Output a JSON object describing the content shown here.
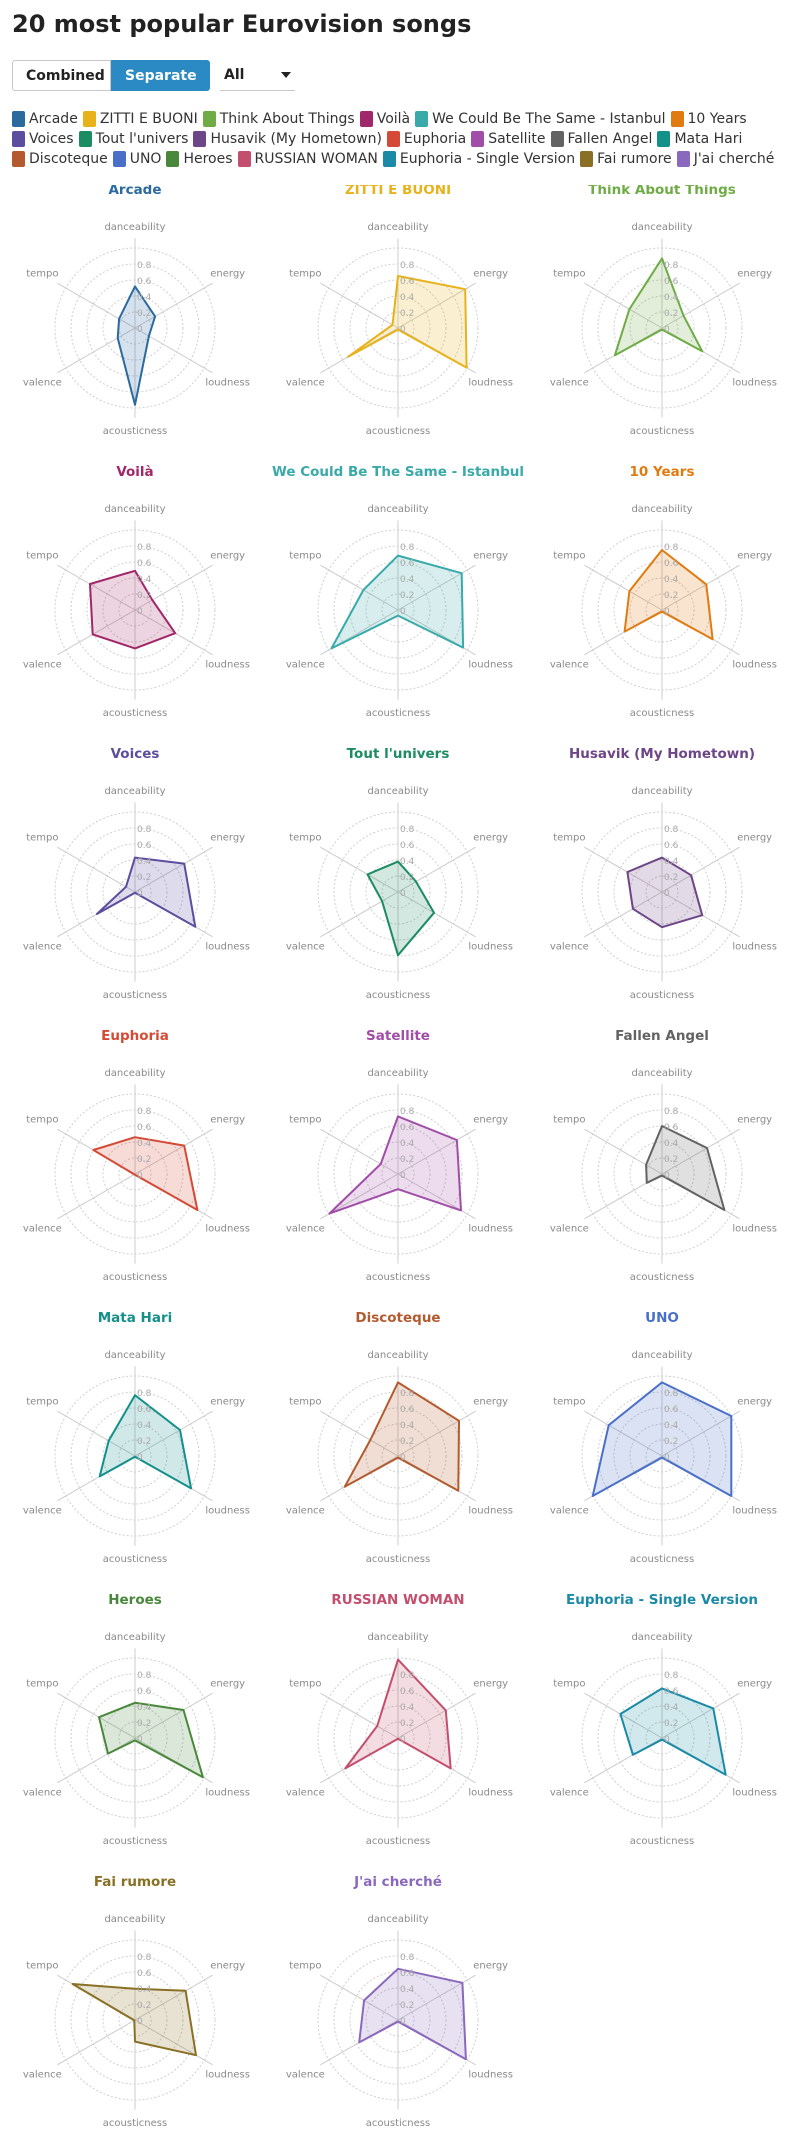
{
  "title": "20 most popular Eurovision songs",
  "controls": {
    "combined_label": "Combined",
    "separate_label": "Separate",
    "filter_value": "All"
  },
  "axis_ticks": [
    "0",
    "0.2",
    "0.4",
    "0.6",
    "0.8"
  ],
  "chart_data": {
    "type": "radar",
    "layout": "small-multiples",
    "axes": [
      "danceability",
      "energy",
      "loudness",
      "acousticness",
      "valence",
      "tempo"
    ],
    "range": [
      0,
      1
    ],
    "grid": true,
    "legend_placement": "top",
    "series": [
      {
        "name": "Arcade",
        "color": "#2b6a9e",
        "values": [
          0.52,
          0.29,
          0.2,
          0.96,
          0.25,
          0.23
        ]
      },
      {
        "name": "ZITTI E BUONI",
        "color": "#e8b21a",
        "values": [
          0.65,
          0.97,
          0.99,
          0.02,
          0.72,
          0.08
        ]
      },
      {
        "name": "Think About Things",
        "color": "#6fac46",
        "values": [
          0.87,
          0.31,
          0.58,
          0.02,
          0.68,
          0.47
        ]
      },
      {
        "name": "Voilà",
        "color": "#a0276a",
        "values": [
          0.49,
          0.25,
          0.58,
          0.48,
          0.61,
          0.65
        ]
      },
      {
        "name": "We Could Be The Same - Istanbul",
        "color": "#3aa9a9",
        "values": [
          0.68,
          0.92,
          0.94,
          0.07,
          0.96,
          0.5
        ]
      },
      {
        "name": "10 Years",
        "color": "#e07b10",
        "values": [
          0.75,
          0.64,
          0.73,
          0.02,
          0.54,
          0.47
        ]
      },
      {
        "name": "Voices",
        "color": "#5c4d9e",
        "values": [
          0.43,
          0.71,
          0.87,
          0.01,
          0.55,
          0.13
        ]
      },
      {
        "name": "Tout l'univers",
        "color": "#1c8c63",
        "values": [
          0.38,
          0.26,
          0.52,
          0.79,
          0.23,
          0.44
        ]
      },
      {
        "name": "Husavik (My Hometown)",
        "color": "#6e4587",
        "values": [
          0.43,
          0.42,
          0.58,
          0.44,
          0.42,
          0.5
        ]
      },
      {
        "name": "Euphoria",
        "color": "#d44a35",
        "values": [
          0.46,
          0.71,
          0.9,
          0.01,
          0.01,
          0.6
        ]
      },
      {
        "name": "Satellite",
        "color": "#a14ea8",
        "values": [
          0.72,
          0.85,
          0.91,
          0.19,
          0.99,
          0.25
        ]
      },
      {
        "name": "Fallen Angel",
        "color": "#636363",
        "values": [
          0.6,
          0.65,
          0.9,
          0.02,
          0.22,
          0.23
        ]
      },
      {
        "name": "Mata Hari",
        "color": "#14908a",
        "values": [
          0.76,
          0.65,
          0.81,
          0.01,
          0.51,
          0.38
        ]
      },
      {
        "name": "Discoteque",
        "color": "#b45a2f",
        "values": [
          0.92,
          0.88,
          0.87,
          0.02,
          0.77,
          0.4
        ]
      },
      {
        "name": "UNO",
        "color": "#4a6fc9",
        "values": [
          0.92,
          1.0,
          1.0,
          0.02,
          1.0,
          0.77
        ]
      },
      {
        "name": "Heroes",
        "color": "#49883a",
        "values": [
          0.44,
          0.7,
          0.98,
          0.03,
          0.39,
          0.52
        ]
      },
      {
        "name": "RUSSIAN WOMAN",
        "color": "#c44e6e",
        "values": [
          0.98,
          0.69,
          0.76,
          0.01,
          0.76,
          0.3
        ]
      },
      {
        "name": "Euphoria - Single Version",
        "color": "#1a8aa6",
        "values": [
          0.62,
          0.74,
          0.92,
          0.02,
          0.42,
          0.6
        ]
      },
      {
        "name": "Fai rumore",
        "color": "#8a7024",
        "values": [
          0.39,
          0.73,
          0.88,
          0.27,
          0.01,
          0.9
        ]
      },
      {
        "name": "J'ai cherché",
        "color": "#8a68bd",
        "values": [
          0.64,
          0.93,
          0.98,
          0.02,
          0.56,
          0.49
        ]
      }
    ]
  }
}
